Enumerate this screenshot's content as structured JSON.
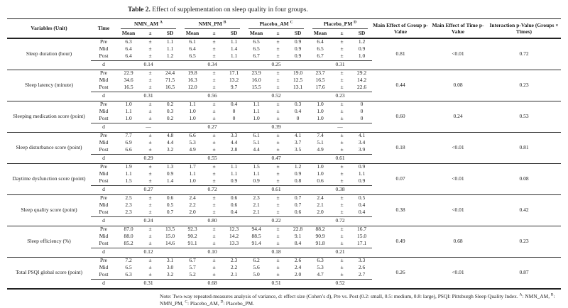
{
  "caption": {
    "label": "Table 2.",
    "text": " Effect of supplementation on sleep quality in four groups."
  },
  "table": {
    "col_variables": "Variables (Unit)",
    "col_time": "Time",
    "groups": [
      {
        "name": "NMN_AM",
        "sup": "A"
      },
      {
        "name": "NMN_PM",
        "sup": "B"
      },
      {
        "name": "Placebo_AM",
        "sup": "C"
      },
      {
        "name": "Placebo_PM",
        "sup": "D"
      }
    ],
    "sub_headers": [
      "Mean",
      "±",
      "SD"
    ],
    "pm": "±",
    "col_p_group": "Main Effect of Group p-Value",
    "col_p_time": "Main Effect of Time p-Value",
    "col_p_interaction": "Interaction p-Value (Groups × Times)",
    "time_labels": [
      "Pre",
      "Mid",
      "Post"
    ],
    "d_label": "d",
    "rows": [
      {
        "variable": "Sleep duration (hour)",
        "groups": [
          {
            "mean": [
              "6.3",
              "6.4",
              "6.4"
            ],
            "sd": [
              "1.1",
              "1.1",
              "1.2"
            ],
            "d": "0.14"
          },
          {
            "mean": [
              "6.1",
              "6.4",
              "6.5"
            ],
            "sd": [
              "1.1",
              "1.4",
              "1.1"
            ],
            "d": "0.34"
          },
          {
            "mean": [
              "6.5",
              "6.5",
              "6.7"
            ],
            "sd": [
              "0.9",
              "0.9",
              "0.9"
            ],
            "d": "0.25"
          },
          {
            "mean": [
              "6.4",
              "6.5",
              "6.7"
            ],
            "sd": [
              "1.2",
              "0.9",
              "1.0"
            ],
            "d": "0.31"
          }
        ],
        "p_group": "0.81",
        "p_time": "<0.01",
        "p_interaction": "0.72"
      },
      {
        "variable": "Sleep latency (minute)",
        "groups": [
          {
            "mean": [
              "22.9",
              "34.6",
              "16.5"
            ],
            "sd": [
              "24.4",
              "71.5",
              "16.5"
            ],
            "d": "0.31"
          },
          {
            "mean": [
              "19.8",
              "16.3",
              "12.0"
            ],
            "sd": [
              "17.1",
              "13.2",
              "9.7"
            ],
            "d": "0.56"
          },
          {
            "mean": [
              "23.9",
              "16.0",
              "15.5"
            ],
            "sd": [
              "19.0",
              "12.5",
              "13.1"
            ],
            "d": "0.52"
          },
          {
            "mean": [
              "23.7",
              "16.5",
              "17.6"
            ],
            "sd": [
              "29.2",
              "14.2",
              "22.6"
            ],
            "d": "0.23"
          }
        ],
        "p_group": "0.44",
        "p_time": "0.08",
        "p_interaction": "0.23"
      },
      {
        "variable": "Sleeping medication score (point)",
        "groups": [
          {
            "mean": [
              "1.0",
              "1.1",
              "1.0"
            ],
            "sd": [
              "0.2",
              "0.3",
              "0.2"
            ],
            "d": "—"
          },
          {
            "mean": [
              "1.1",
              "1.0",
              "1.0"
            ],
            "sd": [
              "0.4",
              "0",
              "0"
            ],
            "d": "0.27"
          },
          {
            "mean": [
              "1.1",
              "1.1",
              "1.0"
            ],
            "sd": [
              "0.3",
              "0.4",
              "0"
            ],
            "d": "0.39"
          },
          {
            "mean": [
              "1.0",
              "1.0",
              "1.0"
            ],
            "sd": [
              "0",
              "0",
              "0"
            ],
            "d": "—"
          }
        ],
        "p_group": "0.60",
        "p_time": "0.24",
        "p_interaction": "0.53"
      },
      {
        "variable": "Sleep disturbance score (point)",
        "groups": [
          {
            "mean": [
              "7.7",
              "6.9",
              "6.6"
            ],
            "sd": [
              "4.8",
              "4.4",
              "3.2"
            ],
            "d": "0.29"
          },
          {
            "mean": [
              "6.6",
              "5.3",
              "4.9"
            ],
            "sd": [
              "3.3",
              "4.4",
              "2.8"
            ],
            "d": "0.55"
          },
          {
            "mean": [
              "6.1",
              "5.1",
              "4.4"
            ],
            "sd": [
              "4.1",
              "3.7",
              "3.5"
            ],
            "d": "0.47"
          },
          {
            "mean": [
              "7.4",
              "5.1",
              "4.9"
            ],
            "sd": [
              "4.1",
              "3.4",
              "3.9"
            ],
            "d": "0.61"
          }
        ],
        "p_group": "0.18",
        "p_time": "<0.01",
        "p_interaction": "0.81"
      },
      {
        "variable": "Daytime dysfunction score (point)",
        "groups": [
          {
            "mean": [
              "1.9",
              "1.1",
              "1.5"
            ],
            "sd": [
              "1.3",
              "0.9",
              "1.4"
            ],
            "d": "0.27"
          },
          {
            "mean": [
              "1.7",
              "1.1",
              "1.0"
            ],
            "sd": [
              "1.1",
              "1.1",
              "0.9"
            ],
            "d": "0.72"
          },
          {
            "mean": [
              "1.5",
              "1.1",
              "0.9"
            ],
            "sd": [
              "1.2",
              "0.9",
              "0.8"
            ],
            "d": "0.61"
          },
          {
            "mean": [
              "1.0",
              "1.0",
              "0.6"
            ],
            "sd": [
              "0.9",
              "1.1",
              "0.9"
            ],
            "d": "0.38"
          }
        ],
        "p_group": "0.07",
        "p_time": "<0.01",
        "p_interaction": "0.08"
      },
      {
        "variable": "Sleep quality score (point)",
        "groups": [
          {
            "mean": [
              "2.5",
              "2.3",
              "2.3"
            ],
            "sd": [
              "0.6",
              "0.5",
              "0.7"
            ],
            "d": "0.24"
          },
          {
            "mean": [
              "2.4",
              "2.2",
              "2.0"
            ],
            "sd": [
              "0.6",
              "0.6",
              "0.4"
            ],
            "d": "0.80"
          },
          {
            "mean": [
              "2.3",
              "2.1",
              "2.1"
            ],
            "sd": [
              "0.7",
              "0.7",
              "0.6"
            ],
            "d": "0.22"
          },
          {
            "mean": [
              "2.4",
              "2.1",
              "2.0"
            ],
            "sd": [
              "0.5",
              "0.4",
              "0.4"
            ],
            "d": "0.72"
          }
        ],
        "p_group": "0.38",
        "p_time": "<0.01",
        "p_interaction": "0.42"
      },
      {
        "variable": "Sleep efficiency (%)",
        "groups": [
          {
            "mean": [
              "87.0",
              "88.0",
              "85.2"
            ],
            "sd": [
              "13.5",
              "15.0",
              "14.6"
            ],
            "d": "0.12"
          },
          {
            "mean": [
              "92.3",
              "90.2",
              "91.1"
            ],
            "sd": [
              "12.3",
              "14.2",
              "13.3"
            ],
            "d": "0.10"
          },
          {
            "mean": [
              "94.4",
              "88.5",
              "91.4"
            ],
            "sd": [
              "22.8",
              "9.1",
              "8.4"
            ],
            "d": "0.18"
          },
          {
            "mean": [
              "88.2",
              "90.9",
              "91.8"
            ],
            "sd": [
              "16.7",
              "15.0",
              "17.1"
            ],
            "d": "0.21"
          }
        ],
        "p_group": "0.49",
        "p_time": "0.68",
        "p_interaction": "0.23"
      },
      {
        "variable": "Total PSQI global score (point)",
        "groups": [
          {
            "mean": [
              "7.2",
              "6.5",
              "6.3"
            ],
            "sd": [
              "3.1",
              "3.0",
              "3.2"
            ],
            "d": "0.31"
          },
          {
            "mean": [
              "6.7",
              "5.7",
              "5.2"
            ],
            "sd": [
              "2.3",
              "2.2",
              "2.1"
            ],
            "d": "0.68"
          },
          {
            "mean": [
              "6.2",
              "5.6",
              "5.0"
            ],
            "sd": [
              "2.6",
              "2.4",
              "2.0"
            ],
            "d": "0.51"
          },
          {
            "mean": [
              "6.3",
              "5.3",
              "4.7"
            ],
            "sd": [
              "3.3",
              "2.6",
              "2.7"
            ],
            "d": "0.52"
          }
        ],
        "p_group": "0.26",
        "p_time": "<0.01",
        "p_interaction": "0.87"
      }
    ]
  },
  "note_segments": [
    {
      "text": "Note: Two-way repeated-measures analysis of variance, d: effect size (Cohen’s d), Pre vs. Post (0.2: small, 0.5: medium, 0.8: large), PSQI: Pittsburgh Sleep Quality Index. "
    },
    {
      "sup": "A"
    },
    {
      "text": ": NMN_AM, "
    },
    {
      "sup": "B"
    },
    {
      "text": ": NMN_PM, "
    },
    {
      "sup": "C"
    },
    {
      "text": ": Placebo_AM, "
    },
    {
      "sup": "D"
    },
    {
      "text": ": Placebo_PM."
    }
  ]
}
